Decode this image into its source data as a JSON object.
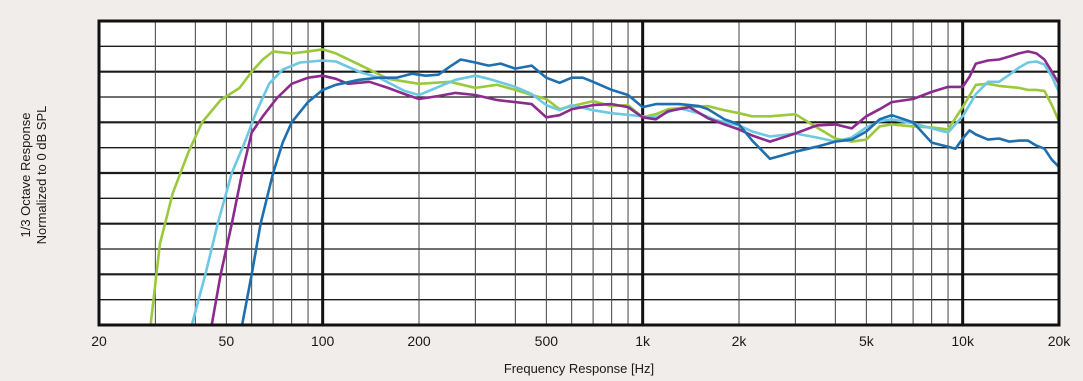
{
  "chart_data": {
    "type": "line",
    "title": "",
    "xlabel": "Frequency Response [Hz]",
    "ylabel_lines": [
      "1/3 Octave Response",
      "Normalized to 0 dB SPL"
    ],
    "x_scale": "log",
    "xlim": [
      20,
      20000
    ],
    "ylim": [
      -25,
      5
    ],
    "grid": true,
    "x_ticks": [
      {
        "value": 20,
        "label": "20"
      },
      {
        "value": 50,
        "label": "50"
      },
      {
        "value": 100,
        "label": "100"
      },
      {
        "value": 200,
        "label": "200"
      },
      {
        "value": 500,
        "label": "500"
      },
      {
        "value": 1000,
        "label": "1k"
      },
      {
        "value": 2000,
        "label": "2k"
      },
      {
        "value": 5000,
        "label": "5k"
      },
      {
        "value": 10000,
        "label": "10k"
      },
      {
        "value": 20000,
        "label": "20k"
      }
    ],
    "series": [
      {
        "color": "#9bc83c",
        "points": [
          [
            29,
            -25
          ],
          [
            31,
            -17
          ],
          [
            34,
            -12
          ],
          [
            38,
            -8
          ],
          [
            42,
            -5
          ],
          [
            48,
            -2.8
          ],
          [
            55,
            -1.6
          ],
          [
            60,
            0
          ],
          [
            65,
            1.2
          ],
          [
            70,
            2
          ],
          [
            80,
            1.8
          ],
          [
            90,
            2
          ],
          [
            100,
            2.2
          ],
          [
            110,
            1.8
          ],
          [
            130,
            0.7
          ],
          [
            160,
            -0.7
          ],
          [
            200,
            -1.2
          ],
          [
            250,
            -1
          ],
          [
            300,
            -1.6
          ],
          [
            350,
            -1.3
          ],
          [
            400,
            -1.8
          ],
          [
            450,
            -2.3
          ],
          [
            500,
            -2.7
          ],
          [
            550,
            -3.7
          ],
          [
            600,
            -3.4
          ],
          [
            700,
            -2.9
          ],
          [
            800,
            -3.4
          ],
          [
            900,
            -3.3
          ],
          [
            1000,
            -4.5
          ],
          [
            1100,
            -4.2
          ],
          [
            1200,
            -3.7
          ],
          [
            1400,
            -3.5
          ],
          [
            1600,
            -3.4
          ],
          [
            1800,
            -3.8
          ],
          [
            2000,
            -4.1
          ],
          [
            2200,
            -4.4
          ],
          [
            2500,
            -4.4
          ],
          [
            3000,
            -4.2
          ],
          [
            3500,
            -5.5
          ],
          [
            4000,
            -6.6
          ],
          [
            4500,
            -6.9
          ],
          [
            5000,
            -6.7
          ],
          [
            5500,
            -5.4
          ],
          [
            6000,
            -5.2
          ],
          [
            7000,
            -5.4
          ],
          [
            8000,
            -5.5
          ],
          [
            9000,
            -5.7
          ],
          [
            10000,
            -3.5
          ],
          [
            11000,
            -1.3
          ],
          [
            12000,
            -1.2
          ],
          [
            13000,
            -1.4
          ],
          [
            14000,
            -1.5
          ],
          [
            15000,
            -1.6
          ],
          [
            16000,
            -1.8
          ],
          [
            17000,
            -1.8
          ],
          [
            18000,
            -1.9
          ],
          [
            19000,
            -3.3
          ],
          [
            20000,
            -4.9
          ]
        ]
      },
      {
        "color": "#6cc8e3",
        "points": [
          [
            39,
            -25
          ],
          [
            43,
            -20
          ],
          [
            47,
            -15
          ],
          [
            52,
            -10
          ],
          [
            57,
            -7
          ],
          [
            62,
            -4
          ],
          [
            68,
            -1.2
          ],
          [
            75,
            0.2
          ],
          [
            85,
            0.9
          ],
          [
            100,
            1.1
          ],
          [
            110,
            1
          ],
          [
            130,
            0
          ],
          [
            150,
            -0.6
          ],
          [
            180,
            -1.9
          ],
          [
            200,
            -2.3
          ],
          [
            230,
            -1.5
          ],
          [
            260,
            -0.8
          ],
          [
            300,
            -0.4
          ],
          [
            330,
            -0.7
          ],
          [
            400,
            -1.5
          ],
          [
            450,
            -2.2
          ],
          [
            500,
            -3.3
          ],
          [
            550,
            -3.8
          ],
          [
            600,
            -3.3
          ],
          [
            700,
            -3.8
          ],
          [
            800,
            -4.1
          ],
          [
            1000,
            -4.4
          ],
          [
            1100,
            -4.5
          ],
          [
            1200,
            -4
          ],
          [
            1300,
            -3.6
          ],
          [
            1500,
            -4.1
          ],
          [
            1700,
            -4.8
          ],
          [
            2000,
            -5.3
          ],
          [
            2200,
            -5.9
          ],
          [
            2500,
            -6.4
          ],
          [
            3000,
            -6.1
          ],
          [
            3500,
            -6.5
          ],
          [
            4000,
            -6.9
          ],
          [
            4500,
            -6.5
          ],
          [
            5000,
            -5.5
          ],
          [
            5500,
            -4.9
          ],
          [
            6000,
            -4.7
          ],
          [
            7000,
            -5.1
          ],
          [
            8000,
            -5.6
          ],
          [
            9000,
            -6
          ],
          [
            10000,
            -4.4
          ],
          [
            11000,
            -2.2
          ],
          [
            12000,
            -1
          ],
          [
            13000,
            -1
          ],
          [
            14000,
            -0.3
          ],
          [
            15000,
            0.4
          ],
          [
            16000,
            0.9
          ],
          [
            17000,
            1
          ],
          [
            18000,
            0.7
          ],
          [
            19000,
            -0.5
          ],
          [
            20000,
            -2
          ]
        ]
      },
      {
        "color": "#8c2b8e",
        "points": [
          [
            45,
            -25
          ],
          [
            48,
            -20
          ],
          [
            52,
            -15
          ],
          [
            56,
            -10
          ],
          [
            60,
            -6
          ],
          [
            65,
            -4.4
          ],
          [
            72,
            -2.6
          ],
          [
            80,
            -1.2
          ],
          [
            90,
            -0.6
          ],
          [
            100,
            -0.4
          ],
          [
            110,
            -0.7
          ],
          [
            120,
            -1.2
          ],
          [
            140,
            -1
          ],
          [
            160,
            -1.6
          ],
          [
            180,
            -2.2
          ],
          [
            200,
            -2.7
          ],
          [
            230,
            -2.4
          ],
          [
            260,
            -2.1
          ],
          [
            300,
            -2.3
          ],
          [
            350,
            -2.8
          ],
          [
            400,
            -3
          ],
          [
            450,
            -3.2
          ],
          [
            500,
            -4.5
          ],
          [
            550,
            -4.3
          ],
          [
            600,
            -3.7
          ],
          [
            700,
            -3.3
          ],
          [
            800,
            -3.2
          ],
          [
            900,
            -3.5
          ],
          [
            1000,
            -4.5
          ],
          [
            1100,
            -4.7
          ],
          [
            1200,
            -3.9
          ],
          [
            1400,
            -3.5
          ],
          [
            1600,
            -4.6
          ],
          [
            1800,
            -5.2
          ],
          [
            2000,
            -5.7
          ],
          [
            2200,
            -6.3
          ],
          [
            2500,
            -6.9
          ],
          [
            3000,
            -6.1
          ],
          [
            3500,
            -5.3
          ],
          [
            4000,
            -5.2
          ],
          [
            4500,
            -5.6
          ],
          [
            5000,
            -4.4
          ],
          [
            5500,
            -3.7
          ],
          [
            6000,
            -3
          ],
          [
            7000,
            -2.7
          ],
          [
            8000,
            -2
          ],
          [
            9000,
            -1.5
          ],
          [
            10000,
            -1.5
          ],
          [
            10500,
            -0.5
          ],
          [
            11000,
            0.8
          ],
          [
            12000,
            1.1
          ],
          [
            13000,
            1.2
          ],
          [
            14000,
            1.5
          ],
          [
            15000,
            1.8
          ],
          [
            16000,
            2
          ],
          [
            17000,
            1.8
          ],
          [
            18000,
            1.2
          ],
          [
            19000,
            0
          ],
          [
            20000,
            -1.2
          ]
        ]
      },
      {
        "color": "#1f6fae",
        "points": [
          [
            56,
            -25
          ],
          [
            60,
            -20
          ],
          [
            64,
            -15
          ],
          [
            70,
            -10
          ],
          [
            75,
            -7
          ],
          [
            80,
            -5
          ],
          [
            90,
            -3
          ],
          [
            100,
            -1.8
          ],
          [
            110,
            -1.3
          ],
          [
            130,
            -0.8
          ],
          [
            150,
            -0.6
          ],
          [
            170,
            -0.6
          ],
          [
            190,
            -0.2
          ],
          [
            210,
            -0.4
          ],
          [
            230,
            -0.3
          ],
          [
            250,
            0.5
          ],
          [
            270,
            1.2
          ],
          [
            300,
            0.9
          ],
          [
            330,
            0.6
          ],
          [
            360,
            0.8
          ],
          [
            400,
            0.3
          ],
          [
            450,
            0.6
          ],
          [
            500,
            -0.6
          ],
          [
            550,
            -1.1
          ],
          [
            600,
            -0.6
          ],
          [
            650,
            -0.6
          ],
          [
            700,
            -1
          ],
          [
            800,
            -1.8
          ],
          [
            900,
            -2.3
          ],
          [
            1000,
            -3.5
          ],
          [
            1100,
            -3.2
          ],
          [
            1200,
            -3.2
          ],
          [
            1300,
            -3.2
          ],
          [
            1400,
            -3.3
          ],
          [
            1500,
            -3.4
          ],
          [
            1600,
            -3.7
          ],
          [
            1800,
            -4.7
          ],
          [
            2000,
            -5.2
          ],
          [
            2200,
            -6.8
          ],
          [
            2500,
            -8.6
          ],
          [
            3000,
            -7.9
          ],
          [
            3500,
            -7.4
          ],
          [
            4000,
            -6.9
          ],
          [
            4500,
            -6.7
          ],
          [
            5000,
            -5.9
          ],
          [
            5500,
            -4.7
          ],
          [
            6000,
            -4.3
          ],
          [
            7000,
            -5
          ],
          [
            8000,
            -7
          ],
          [
            9000,
            -7.4
          ],
          [
            9500,
            -7.6
          ],
          [
            10000,
            -6.6
          ],
          [
            10500,
            -5.8
          ],
          [
            11000,
            -6.2
          ],
          [
            12000,
            -6.7
          ],
          [
            13000,
            -6.6
          ],
          [
            14000,
            -6.9
          ],
          [
            15000,
            -6.8
          ],
          [
            16000,
            -6.8
          ],
          [
            17000,
            -7.3
          ],
          [
            18000,
            -7.6
          ],
          [
            19000,
            -8.7
          ],
          [
            20000,
            -9.4
          ]
        ]
      }
    ]
  }
}
